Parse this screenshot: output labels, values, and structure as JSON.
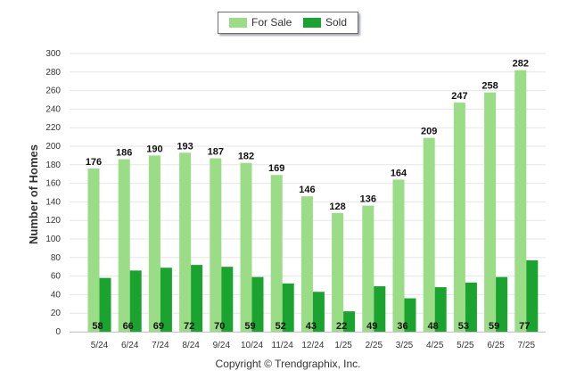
{
  "chart_data": {
    "type": "bar",
    "categories": [
      "5/24",
      "6/24",
      "7/24",
      "8/24",
      "9/24",
      "10/24",
      "11/24",
      "12/24",
      "1/25",
      "2/25",
      "3/25",
      "4/25",
      "5/25",
      "6/25",
      "7/25"
    ],
    "series": [
      {
        "name": "For Sale",
        "color": "#9bdc86",
        "values": [
          176,
          186,
          190,
          193,
          187,
          182,
          169,
          146,
          128,
          136,
          164,
          209,
          247,
          258,
          282
        ]
      },
      {
        "name": "Sold",
        "color": "#1aa32e",
        "values": [
          58,
          66,
          69,
          72,
          70,
          59,
          52,
          43,
          22,
          49,
          36,
          48,
          53,
          59,
          77
        ]
      }
    ],
    "ylabel": "Number of Homes",
    "xlabel": "",
    "ylim": [
      0,
      300
    ],
    "yticks": [
      0,
      20,
      40,
      60,
      80,
      100,
      120,
      140,
      160,
      180,
      200,
      220,
      240,
      260,
      280,
      300
    ],
    "grid": true,
    "legend_position": "top-center"
  },
  "legend": {
    "for_sale": "For Sale",
    "sold": "Sold"
  },
  "footer": {
    "copyright": "Copyright © Trendgraphix, Inc."
  }
}
